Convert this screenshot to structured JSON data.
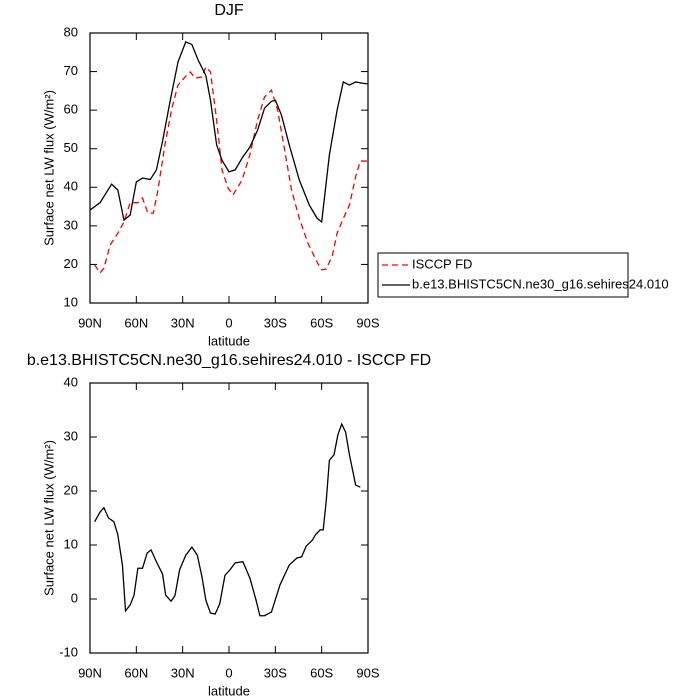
{
  "chart_data": [
    {
      "type": "line",
      "title": "DJF",
      "xlabel": "latitude",
      "ylabel": "Surface net LW flux (W/m²)",
      "xlim": [
        90,
        -90
      ],
      "xticks": [
        {
          "value": 90,
          "label": "90N"
        },
        {
          "value": 60,
          "label": "60N"
        },
        {
          "value": 30,
          "label": "30N"
        },
        0,
        {
          "value": -30,
          "label": "30S"
        },
        {
          "value": -60,
          "label": "60S"
        },
        {
          "value": -90,
          "label": "90S"
        }
      ],
      "ylim": [
        10,
        80
      ],
      "yticks": [
        10,
        20,
        30,
        40,
        50,
        60,
        70,
        80
      ],
      "legend": "right",
      "series": [
        {
          "name": "ISCCP FD",
          "color": "#ff0000",
          "dashed": true,
          "x": [
            87,
            83.5,
            81,
            77,
            72,
            68,
            64,
            59,
            56,
            52.5,
            49,
            46,
            41.5,
            37,
            33,
            28,
            25,
            22,
            17.5,
            15,
            12,
            8,
            4.5,
            0.6,
            -2.6,
            -8.5,
            -13.5,
            -18.5,
            -23,
            -27.5,
            -31.5,
            -36,
            -40.5,
            -45.5,
            -51,
            -57,
            -60,
            -63,
            -67,
            -70,
            -75,
            -78,
            -82,
            -85,
            -90
          ],
          "values": [
            19.9,
            17.8,
            19,
            25,
            28.1,
            31,
            36,
            36,
            37.2,
            33.3,
            33.3,
            39.3,
            51,
            60.5,
            66.5,
            68.8,
            69.9,
            68.3,
            68.6,
            71.2,
            69.9,
            57.4,
            44.5,
            39.8,
            38,
            41.9,
            48.4,
            57.4,
            63.4,
            65.2,
            60,
            49.7,
            39.3,
            32,
            25.6,
            20.6,
            18.6,
            18.8,
            22.4,
            28.1,
            32.8,
            35.4,
            42.7,
            46.8,
            46.8
          ]
        },
        {
          "name": "b.e13.BHISTC5CN.ne30_g16.sehires24.010",
          "color": "#000000",
          "dashed": false,
          "x": [
            90,
            83.5,
            76,
            72,
            68,
            64,
            60,
            56,
            51,
            47,
            43,
            38,
            33,
            28,
            24,
            20,
            15,
            12,
            8,
            4.5,
            0,
            -4,
            -8.5,
            -13.5,
            -18.5,
            -23,
            -27.5,
            -30,
            -34,
            -39,
            -45.5,
            -52,
            -57,
            -60,
            -65,
            -70,
            -74,
            -78,
            -82,
            -86,
            -90
          ],
          "values": [
            34.1,
            36,
            40.8,
            39.3,
            31.5,
            32.8,
            41.4,
            42.4,
            42,
            44.5,
            52,
            62.6,
            72.5,
            77.7,
            77,
            73,
            69,
            62.6,
            51,
            47,
            44,
            44.5,
            47.6,
            50.4,
            54.8,
            60.5,
            62.3,
            62.6,
            58.7,
            51,
            41.9,
            35.4,
            32,
            31,
            48.4,
            60,
            67.3,
            66.5,
            67.3,
            67,
            66.8
          ]
        }
      ]
    },
    {
      "type": "line",
      "title": "b.e13.BHISTC5CN.ne30_g16.sehires24.010 - ISCCP FD",
      "xlabel": "latitude",
      "ylabel": "Surface net LW flux (W/m²)",
      "xlim": [
        90,
        -90
      ],
      "xticks": [
        {
          "value": 90,
          "label": "90N"
        },
        {
          "value": 60,
          "label": "60N"
        },
        {
          "value": 30,
          "label": "30N"
        },
        0,
        {
          "value": -30,
          "label": "30S"
        },
        {
          "value": -60,
          "label": "60S"
        },
        {
          "value": -90,
          "label": "90S"
        }
      ],
      "ylim": [
        -10,
        40
      ],
      "yticks": [
        -10,
        0,
        10,
        20,
        30,
        40
      ],
      "series": [
        {
          "color": "#000000",
          "dashed": false,
          "x": [
            87,
            83.5,
            81,
            78,
            74.5,
            72,
            69,
            67,
            64,
            61.5,
            59,
            56,
            53,
            50.5,
            47,
            43,
            41,
            37.5,
            35,
            32,
            28,
            24,
            20.5,
            17.5,
            15,
            12,
            9,
            6,
            2.6,
            -0.6,
            -4,
            -9,
            -13.5,
            -17.5,
            -20,
            -23,
            -27.5,
            -33,
            -39,
            -44,
            -47,
            -50,
            -54,
            -56,
            -59,
            -61,
            -63,
            -65,
            -68,
            -70.5,
            -73,
            -75.5,
            -78,
            -82,
            -85
          ],
          "values": [
            14.3,
            16.1,
            16.9,
            15,
            14.3,
            11.9,
            6.3,
            -2.2,
            -1.1,
            0.7,
            5.7,
            5.7,
            8.5,
            9.1,
            6.9,
            4.6,
            0.7,
            -0.4,
            0.6,
            5.4,
            8.1,
            9.6,
            8.1,
            4.1,
            -0.2,
            -2.6,
            -2.8,
            -0.9,
            4.4,
            5.4,
            6.7,
            6.9,
            3.9,
            -0.2,
            -3.1,
            -3.1,
            -2.4,
            2.6,
            6.3,
            7.6,
            7.8,
            9.8,
            10.9,
            11.9,
            12.8,
            12.8,
            18.3,
            25.7,
            26.7,
            30.4,
            32.4,
            30.9,
            26.7,
            21.1,
            20.7
          ]
        }
      ]
    }
  ]
}
